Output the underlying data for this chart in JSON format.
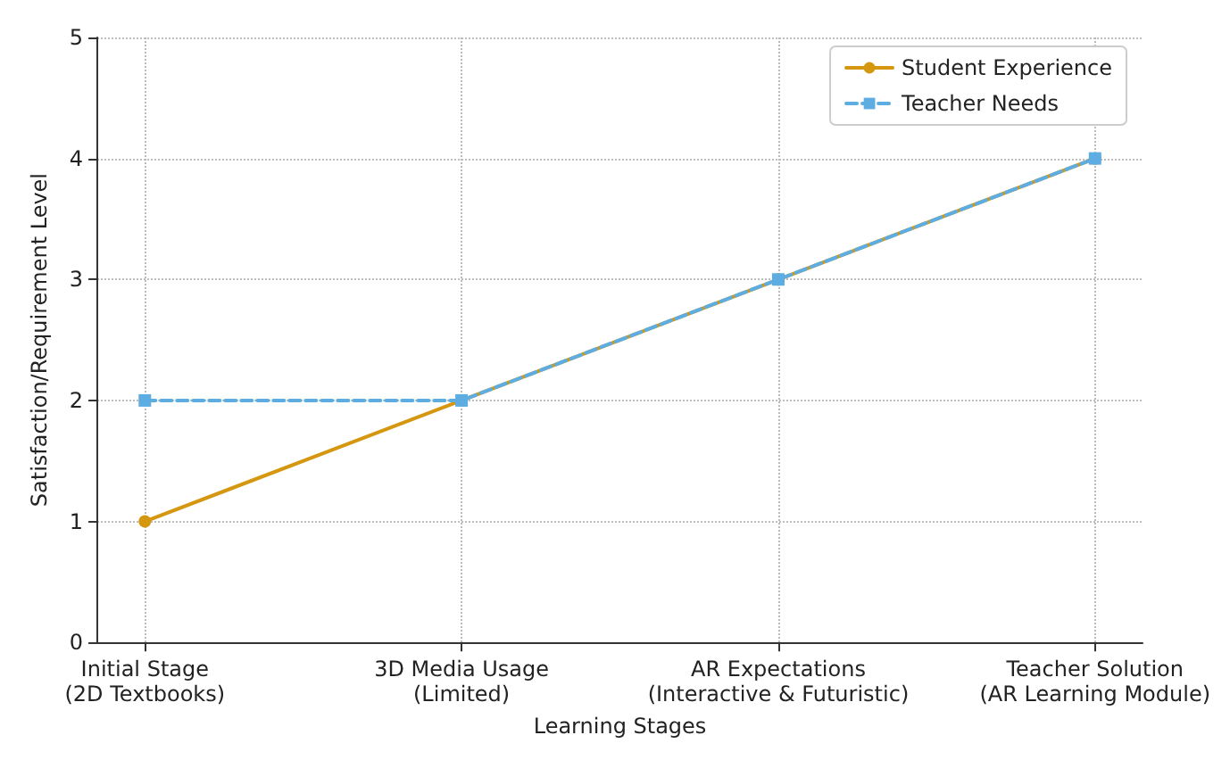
{
  "chart_data": {
    "type": "line",
    "xlabel": "Learning Stages",
    "ylabel": "Satisfaction/Requirement Level",
    "categories": [
      "Initial Stage\n(2D Textbooks)",
      "3D Media Usage\n(Limited)",
      "AR Expectations\n(Interactive & Futuristic)",
      "Teacher Solution\n(AR Learning Module)"
    ],
    "series": [
      {
        "name": "Student Experience",
        "color": "#d4970f",
        "values": [
          1,
          2,
          3,
          4
        ],
        "marker": "circle",
        "line_style": "solid"
      },
      {
        "name": "Teacher Needs",
        "color": "#5dade2",
        "values": [
          2,
          2,
          3,
          4
        ],
        "marker": "square",
        "line_style": "dashed"
      }
    ],
    "ylim": [
      0,
      5
    ],
    "yticks": [
      0,
      1,
      2,
      3,
      4,
      5
    ],
    "grid": true,
    "legend": "top right"
  }
}
